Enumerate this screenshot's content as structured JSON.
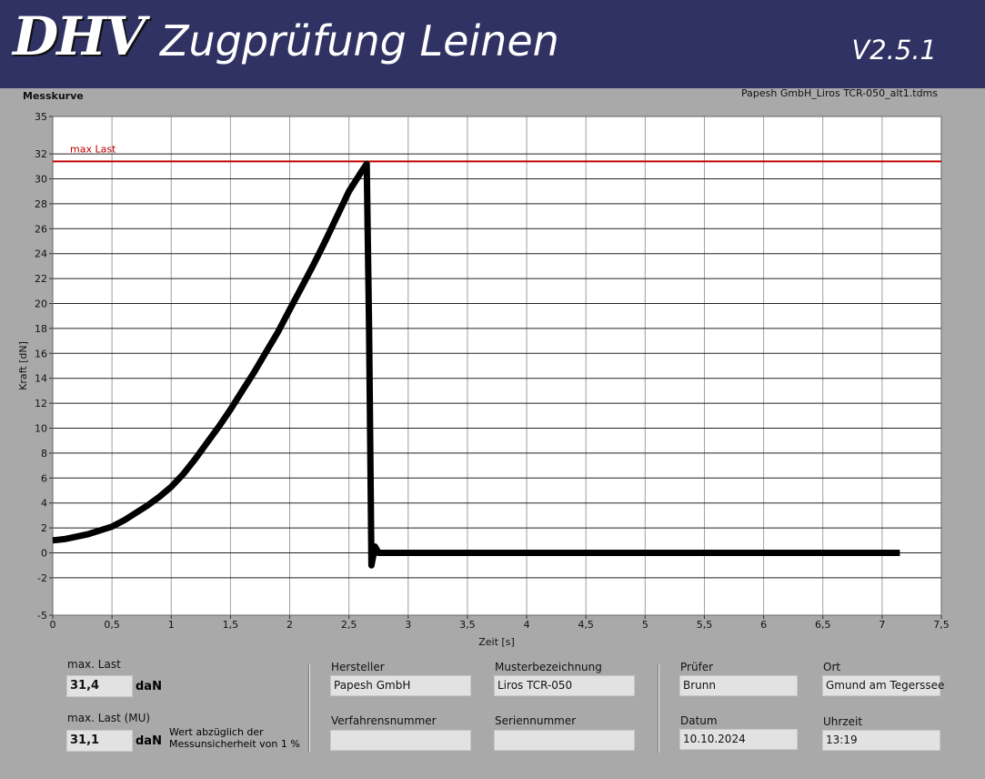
{
  "header": {
    "logo": "DHV",
    "title": "Zugprüfung Leinen",
    "version": "V2.5.1"
  },
  "chart_data": {
    "type": "line",
    "title": "Messkurve",
    "file": "Papesh GmbH_Liros TCR-050_alt1.tdms",
    "x_label": "Zeit [s]",
    "y_label": "Kraft [dN]",
    "color": "#000000",
    "x": [
      0,
      0.1,
      0.2,
      0.3,
      0.4,
      0.5,
      0.6,
      0.7,
      0.8,
      0.9,
      1.0,
      1.1,
      1.2,
      1.3,
      1.4,
      1.5,
      1.6,
      1.7,
      1.8,
      1.9,
      2.0,
      2.1,
      2.2,
      2.3,
      2.4,
      2.5,
      2.6,
      2.65,
      2.67,
      2.69,
      2.72,
      2.75,
      3,
      4,
      5,
      6,
      7,
      7.15
    ],
    "values": [
      1,
      1.1,
      1.3,
      1.5,
      1.8,
      2.1,
      2.6,
      3.2,
      3.8,
      4.5,
      5.3,
      6.3,
      7.5,
      8.8,
      10.1,
      11.5,
      13,
      14.5,
      16.1,
      17.7,
      19.5,
      21.3,
      23.1,
      25,
      27,
      29,
      30.5,
      31.2,
      18,
      -1,
      0.5,
      0,
      0,
      0,
      0,
      0,
      0,
      0
    ],
    "reference_line": {
      "label": "max Last",
      "value": 31.4,
      "color": "#c00000"
    },
    "xlim": [
      0,
      7.5
    ],
    "xticks": [
      0,
      {
        "value": 0.5,
        "label": "0,5"
      },
      1,
      {
        "value": 1.5,
        "label": "1,5"
      },
      2,
      {
        "value": 2.5,
        "label": "2,5"
      },
      3,
      {
        "value": 3.5,
        "label": "3,5"
      },
      4,
      {
        "value": 4.5,
        "label": "4,5"
      },
      5,
      {
        "value": 5.5,
        "label": "5,5"
      },
      6,
      {
        "value": 6.5,
        "label": "6,5"
      },
      7,
      {
        "value": 7.5,
        "label": "7,5"
      }
    ],
    "ylim": [
      -5,
      35
    ],
    "yticks": [
      -5,
      -2,
      0,
      2,
      4,
      6,
      8,
      10,
      12,
      14,
      16,
      18,
      20,
      22,
      24,
      26,
      28,
      30,
      32,
      35
    ],
    "grid": true
  },
  "form": {
    "max_load": {
      "label": "max. Last",
      "value": "31,4",
      "unit": "daN"
    },
    "max_load_mu": {
      "label": "max. Last (MU)",
      "value": "31,1",
      "unit": "daN",
      "note": [
        "Wert abzüglich der",
        "Messunsicherheit von 1 %"
      ]
    },
    "manufacturer": {
      "label": "Hersteller",
      "value": "Papesh GmbH"
    },
    "model": {
      "label": "Musterbezeichnung",
      "value": "Liros TCR-050"
    },
    "procedure": {
      "label": "Verfahrensnummer"
    },
    "serial": {
      "label": "Seriennummer"
    },
    "tester": {
      "label": "Prüfer",
      "value": "Brunn"
    },
    "place": {
      "label": "Ort",
      "value": "Gmund am Tegerssee"
    },
    "date": {
      "label": "Datum",
      "value": "10.10.2024"
    },
    "time": {
      "label": "Uhrzeit",
      "value": "13:19"
    }
  }
}
